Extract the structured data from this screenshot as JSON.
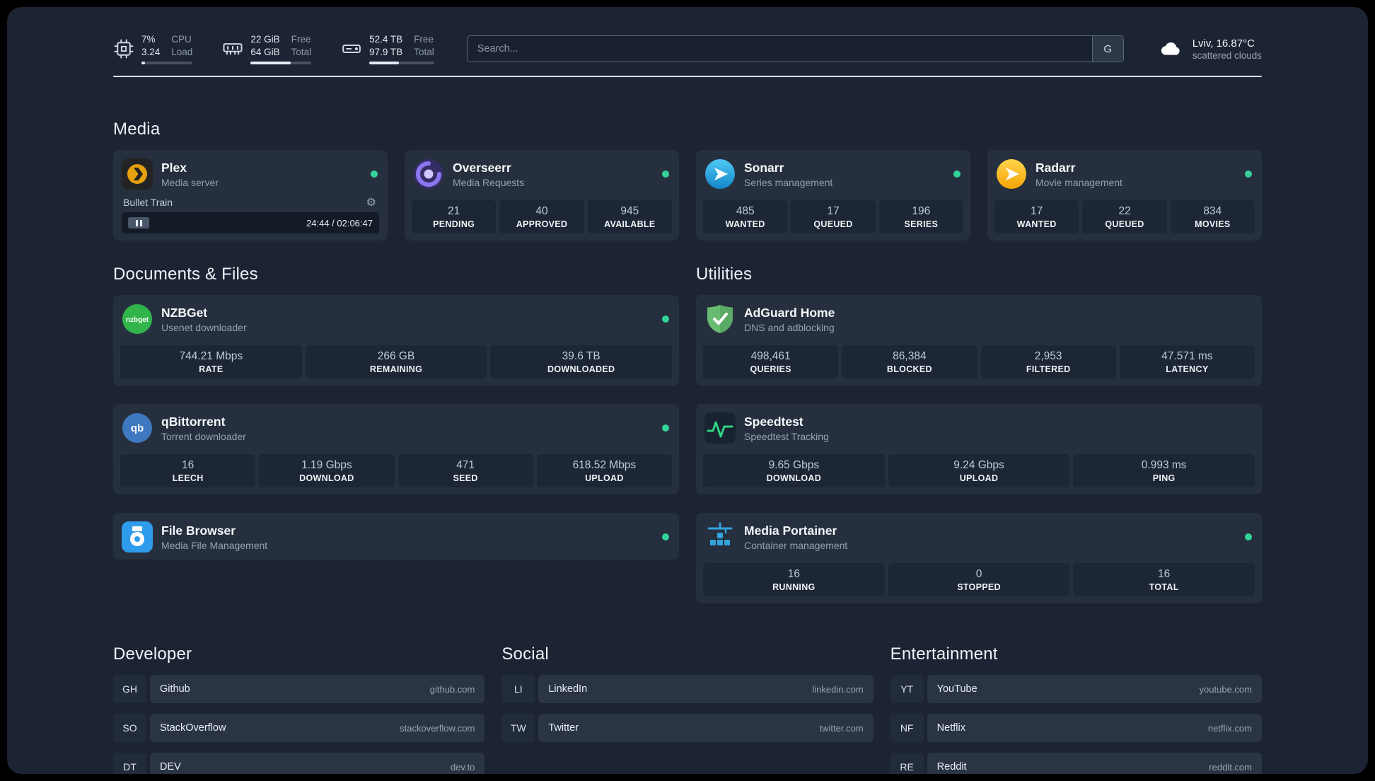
{
  "topbar": {
    "resources": [
      {
        "icon": "cpu-icon",
        "rows": [
          {
            "value": "7%",
            "label": "CPU"
          },
          {
            "value": "3.24",
            "label": "Load"
          }
        ],
        "percent": 7
      },
      {
        "icon": "memory-icon",
        "rows": [
          {
            "value": "22 GiB",
            "label": "Free"
          },
          {
            "value": "64 GiB",
            "label": "Total"
          }
        ],
        "percent": 66
      },
      {
        "icon": "disk-icon",
        "rows": [
          {
            "value": "52.4 TB",
            "label": "Free"
          },
          {
            "value": "97.9 TB",
            "label": "Total"
          }
        ],
        "percent": 46
      }
    ],
    "search": {
      "placeholder": "Search...",
      "button": "G"
    },
    "weather": {
      "location": "Lviv, 16.87°C",
      "condition": "scattered clouds"
    }
  },
  "sections": {
    "media": {
      "title": "Media",
      "cards": [
        {
          "title": "Plex",
          "subtitle": "Media server",
          "status": "online",
          "player": {
            "track": "Bullet Train",
            "time": "24:44 / 02:06:47"
          }
        },
        {
          "title": "Overseerr",
          "subtitle": "Media Requests",
          "status": "online",
          "stats": [
            {
              "value": "21",
              "label": "PENDING"
            },
            {
              "value": "40",
              "label": "APPROVED"
            },
            {
              "value": "945",
              "label": "AVAILABLE"
            }
          ]
        },
        {
          "title": "Sonarr",
          "subtitle": "Series management",
          "status": "online",
          "stats": [
            {
              "value": "485",
              "label": "WANTED"
            },
            {
              "value": "17",
              "label": "QUEUED"
            },
            {
              "value": "196",
              "label": "SERIES"
            }
          ]
        },
        {
          "title": "Radarr",
          "subtitle": "Movie management",
          "status": "online",
          "stats": [
            {
              "value": "17",
              "label": "WANTED"
            },
            {
              "value": "22",
              "label": "QUEUED"
            },
            {
              "value": "834",
              "label": "MOVIES"
            }
          ]
        }
      ]
    },
    "documents": {
      "title": "Documents & Files",
      "cards": [
        {
          "title": "NZBGet",
          "subtitle": "Usenet downloader",
          "status": "online",
          "stats": [
            {
              "value": "744.21 Mbps",
              "label": "RATE"
            },
            {
              "value": "266 GB",
              "label": "REMAINING"
            },
            {
              "value": "39.6 TB",
              "label": "DOWNLOADED"
            }
          ]
        },
        {
          "title": "qBittorrent",
          "subtitle": "Torrent downloader",
          "status": "online",
          "stats": [
            {
              "value": "16",
              "label": "LEECH"
            },
            {
              "value": "1.19 Gbps",
              "label": "DOWNLOAD"
            },
            {
              "value": "471",
              "label": "SEED"
            },
            {
              "value": "618.52 Mbps",
              "label": "UPLOAD"
            }
          ]
        },
        {
          "title": "File Browser",
          "subtitle": "Media File Management",
          "status": "online"
        }
      ]
    },
    "utilities": {
      "title": "Utilities",
      "cards": [
        {
          "title": "AdGuard Home",
          "subtitle": "DNS and adblocking",
          "stats": [
            {
              "value": "498,461",
              "label": "QUERIES"
            },
            {
              "value": "86,384",
              "label": "BLOCKED"
            },
            {
              "value": "2,953",
              "label": "FILTERED"
            },
            {
              "value": "47.571 ms",
              "label": "LATENCY"
            }
          ]
        },
        {
          "title": "Speedtest",
          "subtitle": "Speedtest Tracking",
          "stats": [
            {
              "value": "9.65 Gbps",
              "label": "DOWNLOAD"
            },
            {
              "value": "9.24 Gbps",
              "label": "UPLOAD"
            },
            {
              "value": "0.993 ms",
              "label": "PING"
            }
          ]
        },
        {
          "title": "Media Portainer",
          "subtitle": "Container management",
          "status": "online",
          "stats": [
            {
              "value": "16",
              "label": "RUNNING"
            },
            {
              "value": "0",
              "label": "STOPPED"
            },
            {
              "value": "16",
              "label": "TOTAL"
            }
          ]
        }
      ]
    },
    "bookmarks": [
      {
        "title": "Developer",
        "items": [
          {
            "abbr": "GH",
            "name": "Github",
            "domain": "github.com"
          },
          {
            "abbr": "SO",
            "name": "StackOverflow",
            "domain": "stackoverflow.com"
          },
          {
            "abbr": "DT",
            "name": "DEV",
            "domain": "dev.to"
          }
        ]
      },
      {
        "title": "Social",
        "items": [
          {
            "abbr": "LI",
            "name": "LinkedIn",
            "domain": "linkedin.com"
          },
          {
            "abbr": "TW",
            "name": "Twitter",
            "domain": "twitter.com"
          }
        ]
      },
      {
        "title": "Entertainment",
        "items": [
          {
            "abbr": "YT",
            "name": "YouTube",
            "domain": "youtube.com"
          },
          {
            "abbr": "NF",
            "name": "Netflix",
            "domain": "netflix.com"
          },
          {
            "abbr": "RE",
            "name": "Reddit",
            "domain": "reddit.com"
          }
        ]
      }
    ]
  },
  "colors": {
    "status_online": "#34d399",
    "background": "#1c2433",
    "card": "#262f3e"
  }
}
